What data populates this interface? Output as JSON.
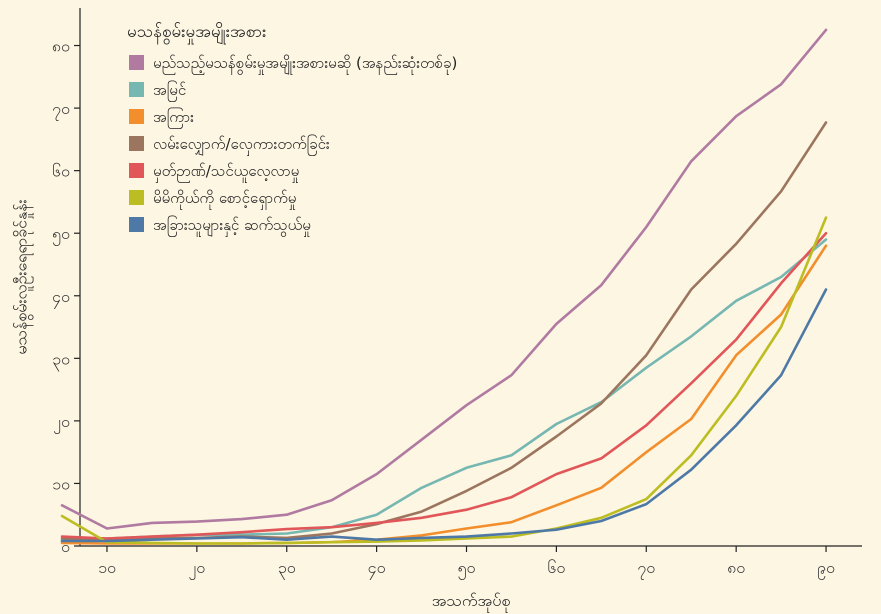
{
  "chart_data": {
    "type": "line",
    "title": "",
    "xlabel": "အသက်အုပ်စု",
    "ylabel": "မသန်စွမ်းလူဦးရေရာခိုင်နှုန်း",
    "xlim": [
      7,
      94
    ],
    "ylim": [
      0,
      86
    ],
    "x_ticks": [
      10,
      20,
      30,
      40,
      50,
      60,
      70,
      80,
      90
    ],
    "x_tick_labels": [
      "၁၀",
      "၂၀",
      "၃၀",
      "၄၀",
      "၅၀",
      "၆၀",
      "၇၀",
      "၈၀",
      "၉၀"
    ],
    "y_ticks": [
      0,
      10,
      20,
      30,
      40,
      50,
      60,
      70,
      80
    ],
    "y_tick_labels": [
      "၀",
      "၁၀",
      "၂၀",
      "၃၀",
      "၄၀",
      "၅၀",
      "၆၀",
      "၇၀",
      "၈၀"
    ],
    "x": [
      5,
      10,
      15,
      20,
      25,
      30,
      35,
      40,
      45,
      50,
      55,
      60,
      65,
      70,
      75,
      80,
      85,
      90
    ],
    "grid": false,
    "legend": {
      "title": "မသန်စွမ်းမှုအမျိုးအစား",
      "position": "top-left"
    },
    "series": [
      {
        "name": "မည်သည့်မသန်စွမ်းမှုအမျိုးအစားမဆို (အနည်းဆုံးတစ်ခု)",
        "color": "#b07aa1",
        "values": [
          6.5,
          2.8,
          3.7,
          3.9,
          4.3,
          5.0,
          7.3,
          11.5,
          17.0,
          22.5,
          27.3,
          35.5,
          41.7,
          51.0,
          61.5,
          68.7,
          73.8,
          82.5
        ]
      },
      {
        "name": "အမြင်",
        "color": "#76b7b2",
        "values": [
          1.0,
          1.2,
          1.5,
          1.8,
          1.8,
          2.0,
          3.0,
          5.0,
          9.3,
          12.5,
          14.5,
          19.5,
          23.0,
          28.5,
          33.5,
          39.2,
          43.0,
          49.0
        ]
      },
      {
        "name": "အကြား",
        "color": "#f28e2b",
        "values": [
          0.5,
          0.4,
          0.4,
          0.4,
          0.4,
          0.5,
          0.6,
          1.0,
          1.7,
          2.8,
          3.8,
          6.5,
          9.3,
          15.0,
          20.3,
          30.5,
          37.0,
          48.0
        ]
      },
      {
        "name": "လမ်းလျှောက်/လှေကားတက်ခြင်း",
        "color": "#9c755f",
        "values": [
          1.2,
          1.0,
          1.2,
          1.3,
          1.5,
          1.3,
          2.0,
          3.5,
          5.5,
          8.8,
          12.5,
          17.5,
          22.8,
          30.5,
          41.0,
          48.3,
          56.7,
          67.7
        ]
      },
      {
        "name": "မှတ်ဉာဏ်/သင်ယူလေ့လာမှု",
        "color": "#e15759",
        "values": [
          1.5,
          1.2,
          1.5,
          1.8,
          2.2,
          2.7,
          3.0,
          3.7,
          4.5,
          5.8,
          7.8,
          11.5,
          14.0,
          19.3,
          26.0,
          33.0,
          42.0,
          50.0
        ]
      },
      {
        "name": "မိမိကိုယ်ကို စောင့်ရှောက်မှု",
        "color": "#bcbd22",
        "values": [
          4.8,
          0.6,
          0.5,
          0.4,
          0.4,
          0.5,
          0.6,
          0.7,
          0.9,
          1.2,
          1.5,
          2.8,
          4.5,
          7.5,
          14.5,
          24.0,
          35.0,
          52.5
        ]
      },
      {
        "name": "အခြားသူများနှင့် ဆက်သွယ်မှု",
        "color": "#4e79a7",
        "values": [
          0.8,
          0.8,
          1.0,
          1.2,
          1.4,
          1.0,
          1.5,
          1.0,
          1.3,
          1.5,
          2.0,
          2.6,
          4.0,
          6.7,
          12.2,
          19.3,
          27.3,
          41.0
        ]
      }
    ]
  }
}
